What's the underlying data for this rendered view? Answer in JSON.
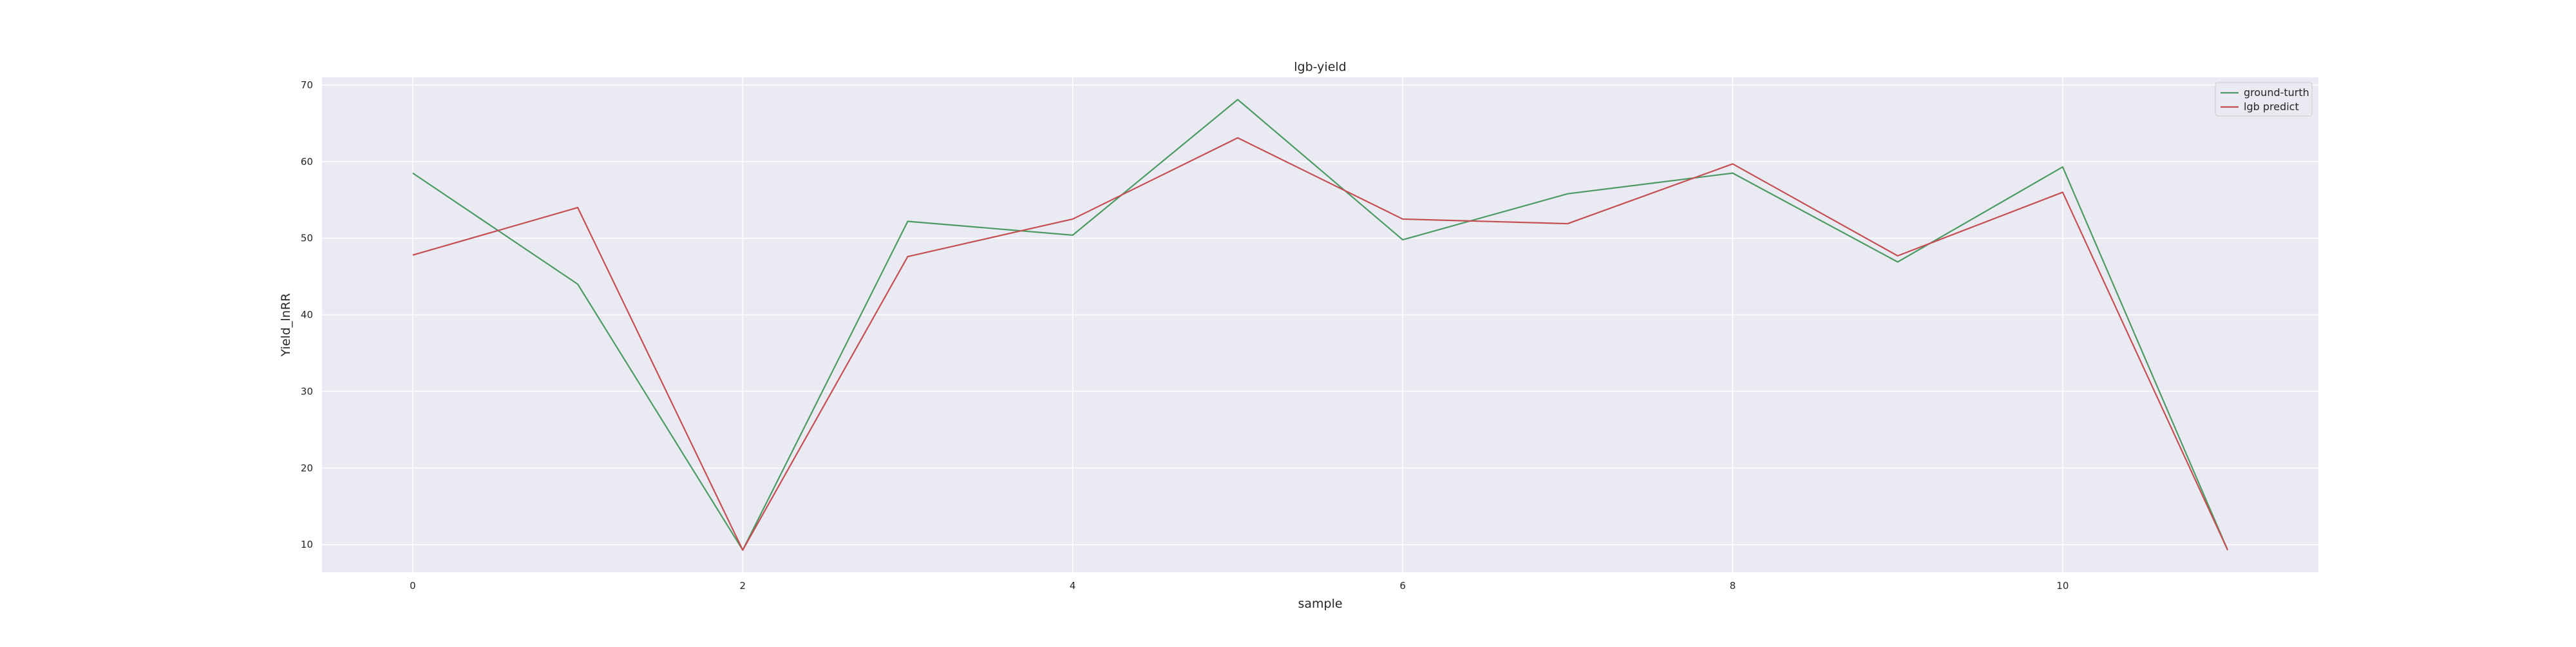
{
  "chart_data": {
    "type": "line",
    "title": "lgb-yield",
    "xlabel": "sample",
    "ylabel": "Yield_lnRR",
    "x": [
      0,
      1,
      2,
      3,
      4,
      5,
      6,
      7,
      8,
      9,
      10,
      11
    ],
    "series": [
      {
        "name": "ground-turth",
        "color": "#4c9a63",
        "values": [
          58.5,
          44.0,
          9.3,
          52.2,
          50.4,
          68.1,
          49.8,
          55.8,
          58.5,
          46.9,
          59.3,
          9.3
        ]
      },
      {
        "name": "lgb predict",
        "color": "#c44e52",
        "values": [
          47.8,
          54.0,
          9.3,
          47.6,
          52.5,
          63.1,
          52.5,
          51.9,
          59.7,
          47.7,
          56.0,
          9.3
        ]
      }
    ],
    "xlim": [
      -0.55,
      11.55
    ],
    "ylim": [
      6.4,
      71.0
    ],
    "x_ticks": [
      0,
      2,
      4,
      6,
      8,
      10
    ],
    "y_ticks": [
      10,
      20,
      30,
      40,
      50,
      60,
      70
    ],
    "grid": true,
    "legend_position": "top-right",
    "background_color": "#eaeaf2",
    "grid_color": "#ffffff"
  }
}
